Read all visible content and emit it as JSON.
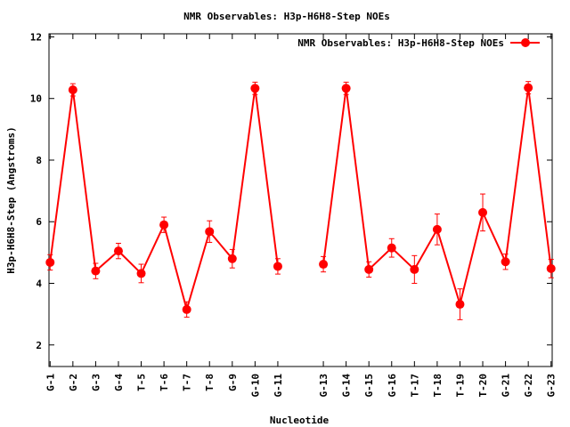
{
  "chart_data": {
    "type": "line",
    "title": "NMR Observables: H3p-H6H8-Step NOEs",
    "xlabel": "Nucleotide",
    "ylabel": "H3p-H6H8-Step (Angstroms)",
    "ylim": [
      1.3,
      12.1
    ],
    "yticks": [
      2,
      4,
      6,
      8,
      10,
      12
    ],
    "xlim": [
      0.95,
      23.05
    ],
    "grid": false,
    "legend_position": "top-right",
    "series_color": "#ff0000",
    "tick_labels": [
      "G-1",
      "G-2",
      "G-3",
      "G-4",
      "T-5",
      "T-6",
      "T-7",
      "T-8",
      "G-9",
      "G-10",
      "G-11",
      "G-13",
      "G-14",
      "G-15",
      "G-16",
      "T-17",
      "T-18",
      "T-19",
      "T-20",
      "G-21",
      "G-22",
      "G-23"
    ],
    "series": [
      {
        "name": "NMR Observables: H3p-H6H8-Step NOEs",
        "segments": [
          {
            "x": [
              1,
              2,
              3,
              4,
              5,
              6,
              7,
              8,
              9,
              10,
              11
            ],
            "y": [
              4.68,
              10.28,
              4.4,
              5.05,
              4.32,
              5.9,
              3.15,
              5.68,
              4.8,
              10.33,
              4.55
            ],
            "err": [
              0.25,
              0.2,
              0.25,
              0.25,
              0.3,
              0.25,
              0.25,
              0.35,
              0.3,
              0.2,
              0.25
            ]
          },
          {
            "x": [
              13,
              14,
              15,
              16,
              17,
              18,
              19,
              20,
              21,
              22,
              23
            ],
            "y": [
              4.62,
              10.33,
              4.45,
              5.15,
              4.45,
              5.75,
              3.32,
              6.3,
              4.7,
              10.35,
              4.48
            ],
            "err": [
              0.25,
              0.2,
              0.25,
              0.3,
              0.45,
              0.5,
              0.5,
              0.6,
              0.25,
              0.2,
              0.3
            ]
          }
        ]
      }
    ]
  }
}
